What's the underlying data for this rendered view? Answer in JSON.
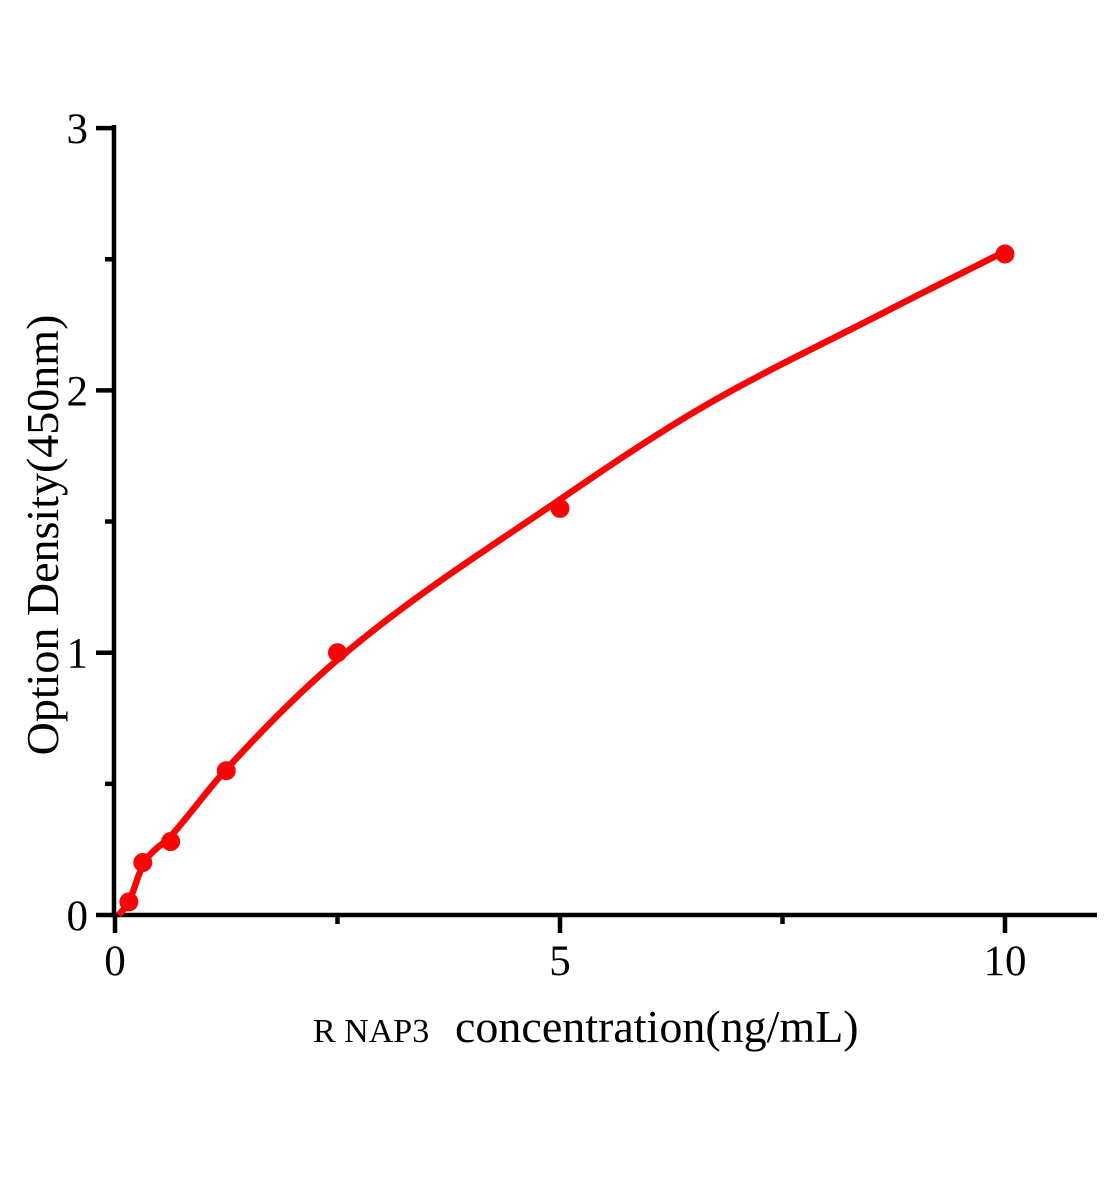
{
  "figure": {
    "background": "#ffffff"
  },
  "chart_data": {
    "type": "scatter",
    "title": "",
    "xlabel_prefix": "R NAP3",
    "xlabel_main": "concentration(ng/mL)",
    "ylabel": "Option Density(450nm)",
    "grid": false,
    "legend": "none",
    "axis_color": "#000000",
    "accent_color": "#f60606",
    "series": [
      {
        "name": "standard-points",
        "marker": "circle",
        "color": "#f60606",
        "x": [
          0.156,
          0.3125,
          0.625,
          1.25,
          2.5,
          5,
          10
        ],
        "y": [
          0.05,
          0.2,
          0.28,
          0.55,
          1.0,
          1.55,
          2.52
        ]
      }
    ],
    "fit_curve": {
      "name": "fitted-curve",
      "color": "#f60606",
      "points": [
        [
          0.04,
          0.0
        ],
        [
          0.156,
          0.05
        ],
        [
          0.3125,
          0.19
        ],
        [
          0.625,
          0.3
        ],
        [
          1.25,
          0.555
        ],
        [
          2.5,
          0.973
        ],
        [
          5,
          1.584
        ],
        [
          6.57,
          1.93
        ],
        [
          8.6,
          2.29
        ],
        [
          10,
          2.53
        ]
      ]
    },
    "x_axis": {
      "lim": [
        0,
        11.05
      ],
      "major_ticks": [
        0,
        5,
        10
      ],
      "major_tick_labels": [
        "0",
        "5",
        "10"
      ],
      "minor_ticks": [
        2.5,
        7.5
      ]
    },
    "y_axis": {
      "lim": [
        0,
        3.01
      ],
      "major_ticks": [
        0,
        1,
        2,
        3
      ],
      "major_tick_labels": [
        "0",
        "1",
        "2",
        "3"
      ],
      "minor_ticks": [
        0.5,
        1.5,
        2.5
      ]
    }
  }
}
